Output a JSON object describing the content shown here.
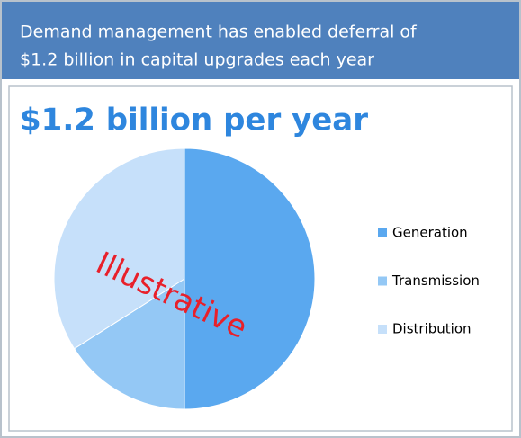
{
  "header": [
    "Demand management has enabled deferral of",
    "$1.2 billion in capital upgrades each year"
  ],
  "chart_data": {
    "type": "pie",
    "title": "$1.2 billion per year",
    "annotation": "Illustrative",
    "categories": [
      "Generation",
      "Transmission",
      "Distribution"
    ],
    "values": [
      50,
      16,
      34
    ],
    "colors": [
      "#5aa8ef",
      "#94c8f5",
      "#c6e0fa"
    ]
  }
}
